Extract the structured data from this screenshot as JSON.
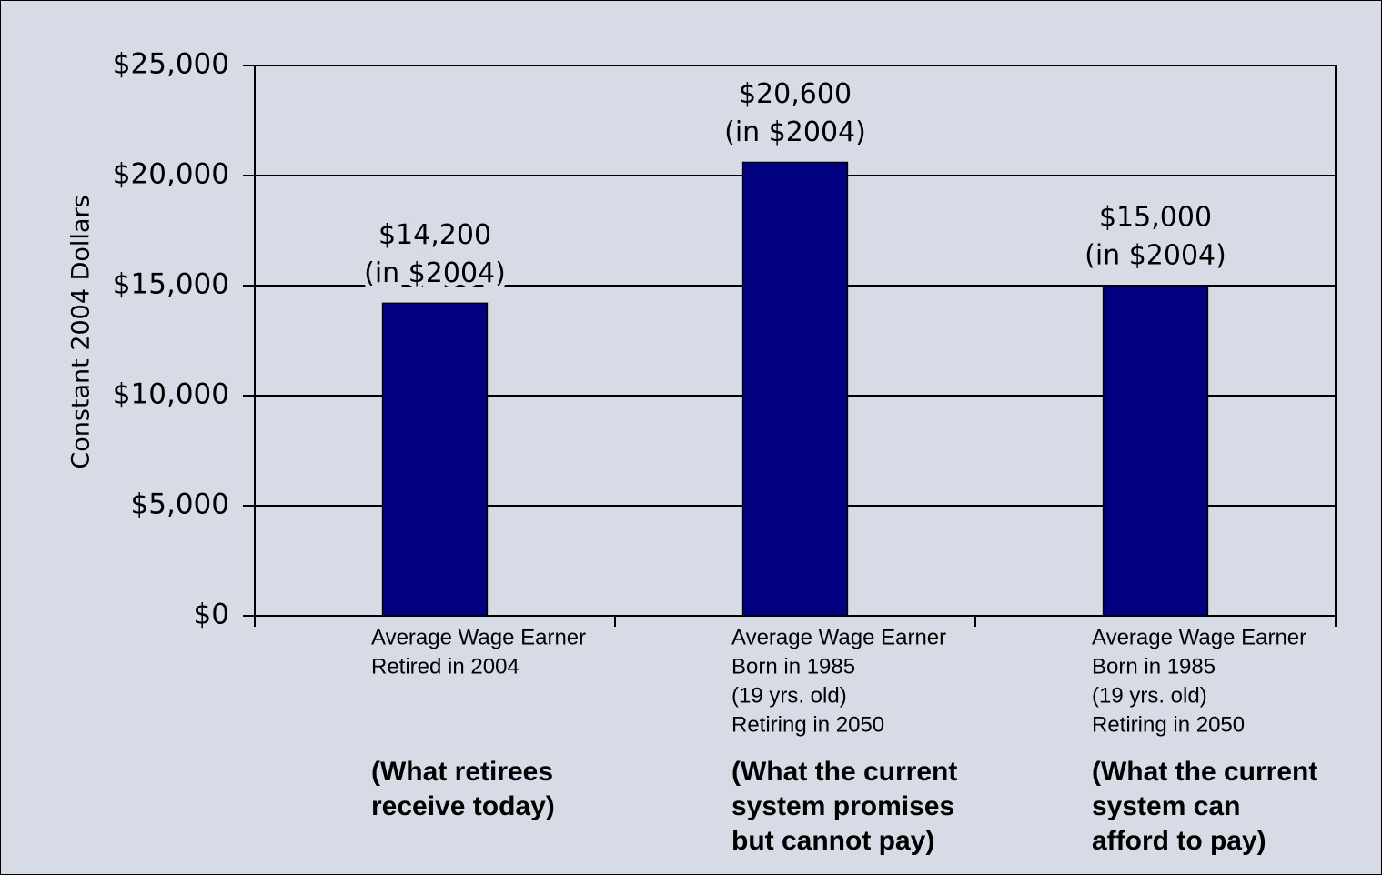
{
  "chart_data": {
    "type": "bar",
    "y_label": "Constant 2004 Dollars",
    "categories": [
      [
        "Average Wage Earner",
        "Retired in 2004"
      ],
      [
        "Average Wage Earner",
        "Born in 1985",
        "(19 yrs. old)",
        "Retiring in 2050"
      ],
      [
        "Average Wage Earner",
        "Born in 1985",
        "(19 yrs. old)",
        "Retiring in 2050"
      ]
    ],
    "notes": [
      [
        "(What retirees",
        "receive today)"
      ],
      [
        "(What the current",
        "system promises",
        "but cannot pay)"
      ],
      [
        "(What the current",
        "system can",
        "afford to pay)"
      ]
    ],
    "values": [
      14200,
      20600,
      15000
    ],
    "value_labels": [
      [
        "$14,200",
        "(in $2004)"
      ],
      [
        "$20,600",
        "(in $2004)"
      ],
      [
        "$15,000",
        "(in $2004)"
      ]
    ],
    "color": "#000080",
    "ylim": [
      0,
      25000
    ],
    "yticks": [
      {
        "value": 0,
        "label": "$0"
      },
      {
        "value": 5000,
        "label": "$5,000"
      },
      {
        "value": 10000,
        "label": "$10,000"
      },
      {
        "value": 15000,
        "label": "$15,000"
      },
      {
        "value": 20000,
        "label": "$20,000"
      },
      {
        "value": 25000,
        "label": "$25,000"
      }
    ],
    "grid": true
  }
}
